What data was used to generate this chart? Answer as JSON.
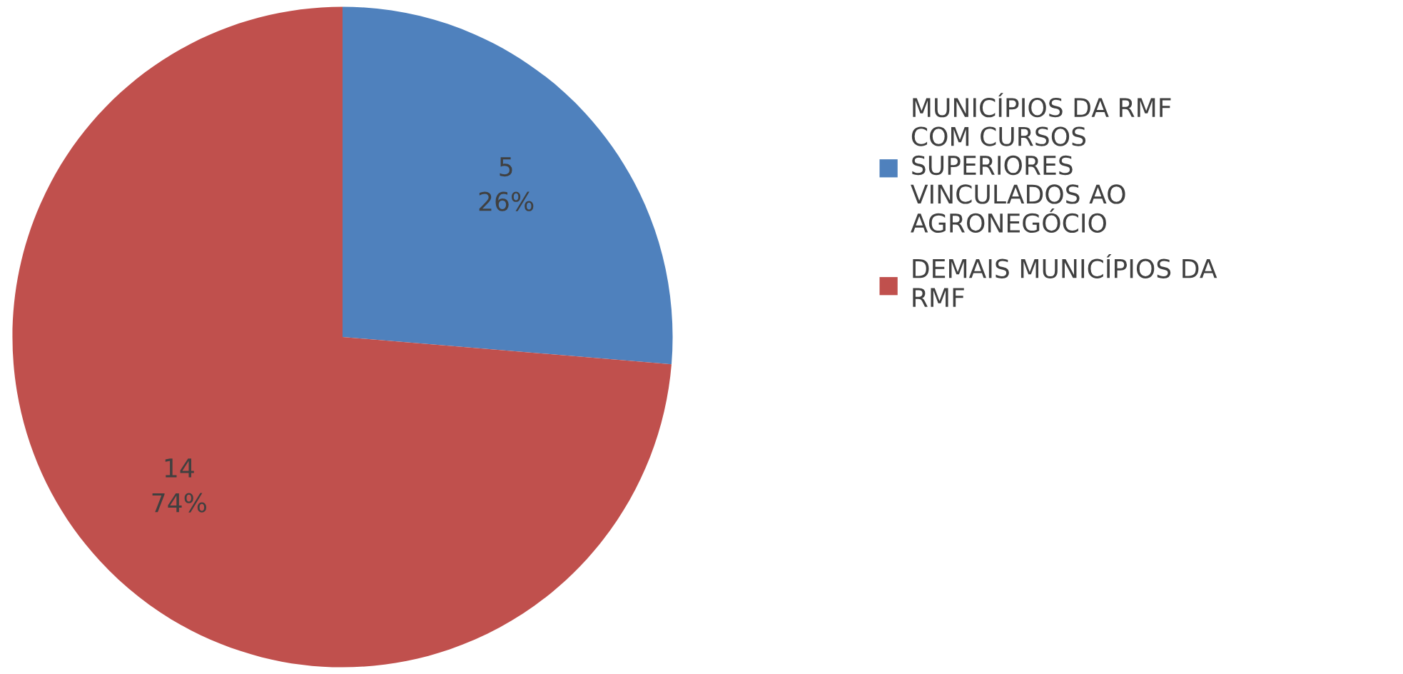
{
  "chart_data": {
    "type": "pie",
    "categories": [
      "MUNICÍPIOS DA RMF COM CURSOS SUPERIORES VINCULADOS AO AGRONEGÓCIO",
      "DEMAIS MUNICÍPIOS DA RMF"
    ],
    "values": [
      5,
      14
    ],
    "colors": [
      "#4f81bd",
      "#c0504d"
    ],
    "value_labels": [
      "5\n26%",
      "14\n74%"
    ],
    "legend": "right"
  }
}
